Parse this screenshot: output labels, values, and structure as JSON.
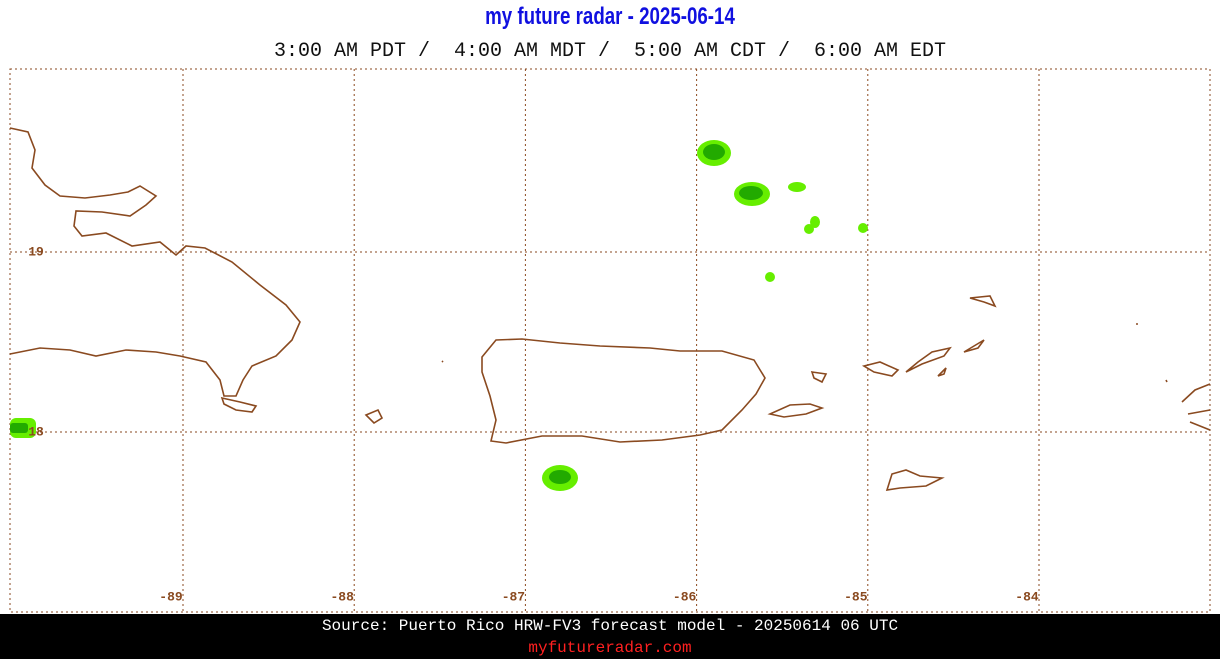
{
  "header": {
    "title": "my future radar - 2025-06-14",
    "times": "3:00 AM PDT /  4:00 AM MDT /  5:00 AM CDT /  6:00 AM EDT"
  },
  "map": {
    "longitude_labels": [
      "-89",
      "-88",
      "-87",
      "-86",
      "-85",
      "-84"
    ],
    "latitude_labels": [
      "19",
      "18"
    ]
  },
  "footer": {
    "source": "Source: Puerto Rico HRW-FV3 forecast model - 20250614 06 UTC",
    "url": "myfutureradar.com"
  }
}
